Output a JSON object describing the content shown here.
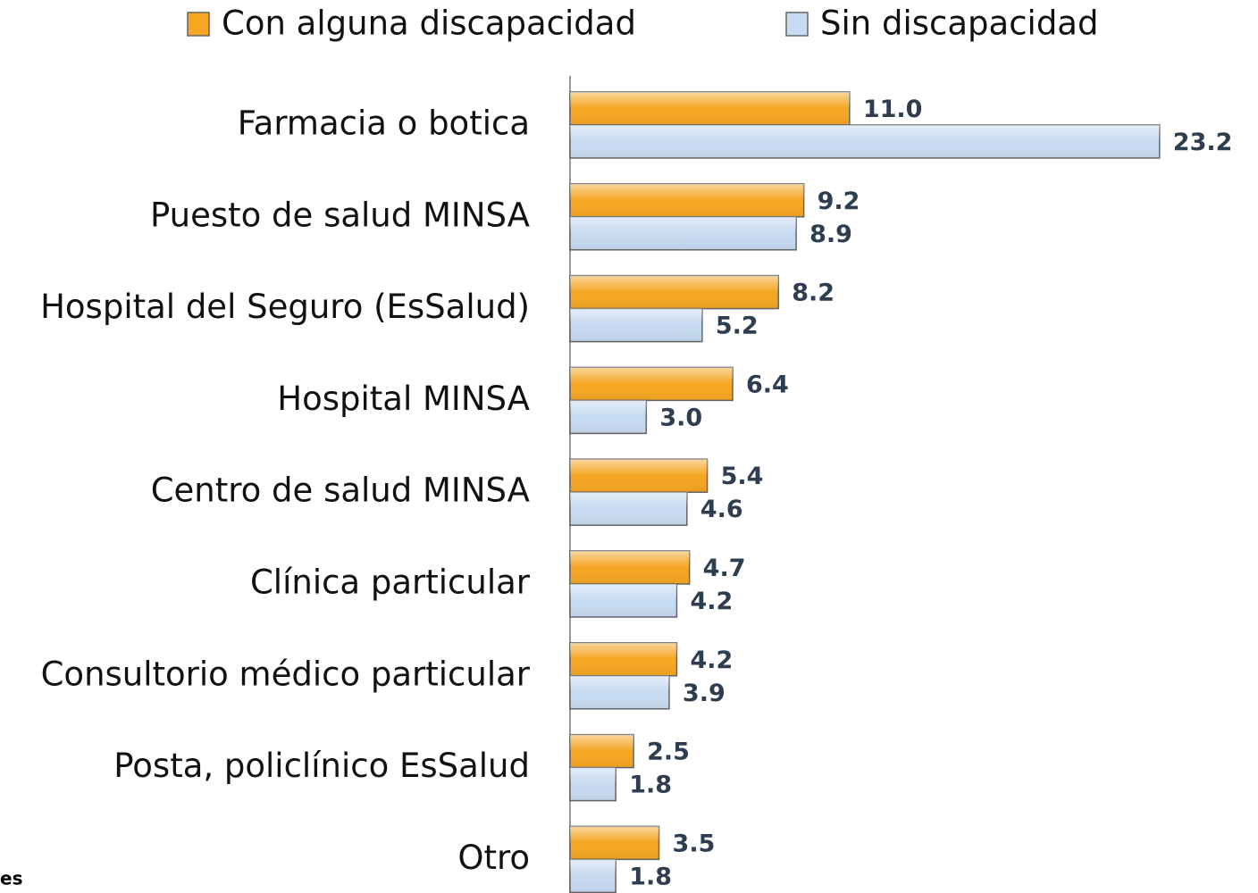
{
  "chart_data": {
    "type": "barh",
    "categories": [
      "Farmacia o botica",
      "Puesto de salud MINSA",
      "Hospital del Seguro (EsSalud)",
      "Hospital MINSA",
      "Centro de salud MINSA",
      "Clínica particular",
      "Consultorio médico particular",
      "Posta, policlínico EsSalud",
      "Otro"
    ],
    "series": [
      {
        "name": "Con alguna discapacidad",
        "color": "#f5a623",
        "values": [
          11.0,
          9.2,
          8.2,
          6.4,
          5.4,
          4.7,
          4.2,
          2.5,
          3.5
        ],
        "value_labels": [
          "11.0",
          "9.2",
          "8.2",
          "6.4",
          "5.4",
          "4.7",
          "4.2",
          "2.5",
          "3.5"
        ]
      },
      {
        "name": "Sin discapacidad",
        "color": "#c6daf1",
        "values": [
          23.2,
          8.9,
          5.2,
          3.0,
          4.6,
          4.2,
          3.9,
          1.8,
          1.8
        ],
        "value_labels": [
          "23.2",
          "8.9",
          "5.2",
          "3.0",
          "4.6",
          "4.2",
          "3.9",
          "1.8",
          "1.8"
        ]
      }
    ],
    "xlim": [
      0,
      25
    ],
    "legend": "top",
    "note": "es"
  }
}
